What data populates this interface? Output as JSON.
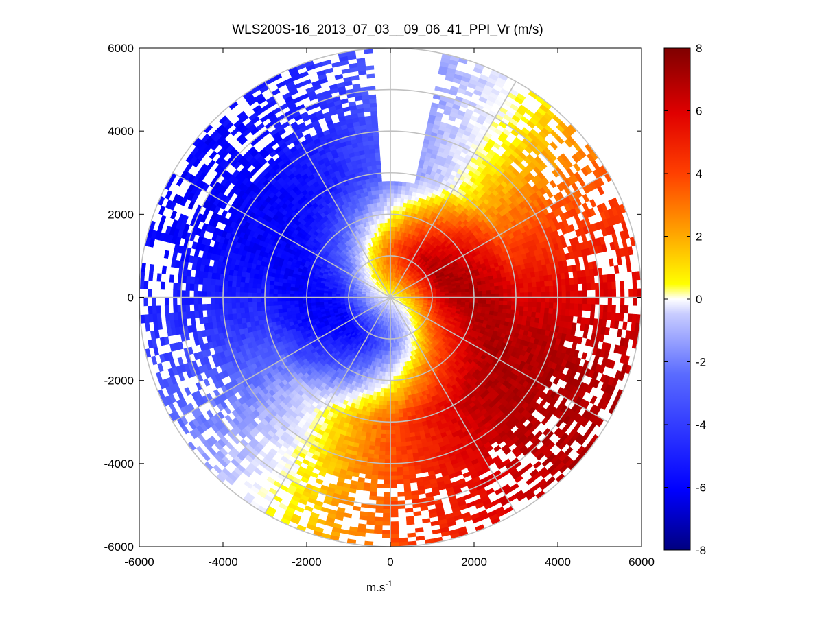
{
  "chart_data": {
    "type": "heatmap",
    "subtype": "polar-ppi",
    "title": "WLS200S-16_2013_07_03__09_06_41_PPI_Vr (m/s)",
    "xlabel": "m.s",
    "xlabel_superscript": "-1",
    "ylabel": "",
    "xlim": [
      -6000,
      6000
    ],
    "ylim": [
      -6000,
      6000
    ],
    "xticks": [
      -6000,
      -4000,
      -2000,
      0,
      2000,
      4000,
      6000
    ],
    "yticks": [
      -6000,
      -4000,
      -2000,
      0,
      2000,
      4000,
      6000
    ],
    "xtick_labels": [
      "-6000",
      "-4000",
      "-2000",
      "0",
      "2000",
      "4000",
      "6000"
    ],
    "ytick_labels": [
      "6000",
      "4000",
      "2000",
      "0",
      "-2000",
      "-4000",
      "-6000"
    ],
    "range_rings_m": [
      1000,
      2000,
      3000,
      4000,
      5000,
      6000
    ],
    "spoke_angles_deg": [
      0,
      30,
      60,
      90,
      120,
      150,
      180,
      210,
      240,
      270,
      300,
      330
    ],
    "max_range_m": 6000,
    "velocity_field": {
      "description": "Radial velocity Vr: negative (blue) to the northwest, positive (red) to the southeast",
      "zero_line_azimuth_deg": [
        30,
        210
      ],
      "peak_negative_mps": -6,
      "peak_positive_mps": 7
    },
    "colorbar": {
      "label": "m/s",
      "vmin": -8,
      "vmax": 8,
      "ticks": [
        8,
        6,
        4,
        2,
        0,
        -2,
        -4,
        -6,
        -8
      ],
      "tick_labels": [
        "8",
        "6",
        "4",
        "2",
        "0",
        "-2",
        "-4",
        "-6",
        "-8"
      ],
      "colormap": [
        "#00007f",
        "#0000ff",
        "#ffffff",
        "#ffff00",
        "#ff8000",
        "#ff0000",
        "#7f0000"
      ]
    },
    "grid": true
  }
}
